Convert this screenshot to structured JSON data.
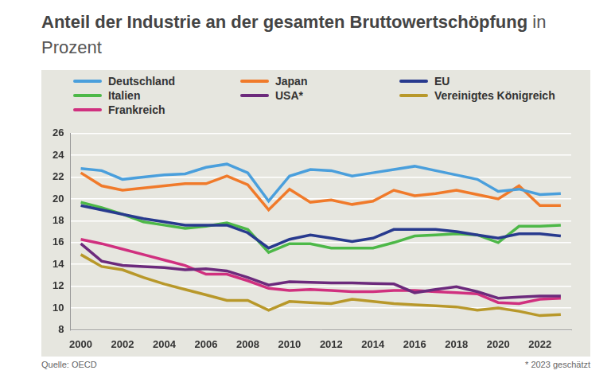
{
  "chart_data": {
    "type": "line",
    "title": "Anteil der Industrie an der gesamten Bruttowertschöpfung",
    "subtitle": "in Prozent",
    "source": "Quelle: OECD",
    "note": "* 2023 geschätzt",
    "x": [
      2000,
      2001,
      2002,
      2003,
      2004,
      2005,
      2006,
      2007,
      2008,
      2009,
      2010,
      2011,
      2012,
      2013,
      2014,
      2015,
      2016,
      2017,
      2018,
      2019,
      2020,
      2021,
      2022,
      2023
    ],
    "xlim": [
      1999.5,
      2023.5
    ],
    "xticks": [
      2000,
      2002,
      2004,
      2006,
      2008,
      2010,
      2012,
      2014,
      2016,
      2018,
      2020,
      2022
    ],
    "ylim": [
      8,
      26
    ],
    "yticks": [
      8,
      10,
      12,
      14,
      16,
      18,
      20,
      22,
      24,
      26
    ],
    "grid": true,
    "legend": "top",
    "series": [
      {
        "name": "Deutschland",
        "color": "#4a9fdc",
        "values": [
          22.8,
          22.6,
          21.8,
          22.0,
          22.2,
          22.3,
          22.9,
          23.2,
          22.4,
          19.8,
          22.1,
          22.7,
          22.6,
          22.1,
          22.4,
          22.7,
          23.0,
          22.6,
          22.2,
          21.8,
          20.7,
          20.9,
          20.4,
          20.5
        ]
      },
      {
        "name": "Japan",
        "color": "#f07a2a",
        "values": [
          22.4,
          21.2,
          20.8,
          21.0,
          21.2,
          21.4,
          21.4,
          22.1,
          21.3,
          19.0,
          20.9,
          19.7,
          19.9,
          19.5,
          19.8,
          20.8,
          20.3,
          20.5,
          20.8,
          20.4,
          20.0,
          21.2,
          19.4,
          19.4
        ]
      },
      {
        "name": "EU",
        "color": "#283a8e",
        "values": [
          19.4,
          19.0,
          18.6,
          18.2,
          17.9,
          17.6,
          17.6,
          17.6,
          16.9,
          15.5,
          16.3,
          16.7,
          16.4,
          16.1,
          16.4,
          17.2,
          17.2,
          17.2,
          17.0,
          16.7,
          16.4,
          16.8,
          16.8,
          16.6
        ]
      },
      {
        "name": "Italien",
        "color": "#4db848",
        "values": [
          19.7,
          19.2,
          18.6,
          17.9,
          17.6,
          17.3,
          17.5,
          17.8,
          17.2,
          15.1,
          15.9,
          15.9,
          15.5,
          15.5,
          15.5,
          16.0,
          16.6,
          16.7,
          16.8,
          16.7,
          16.0,
          17.5,
          17.5,
          17.6
        ]
      },
      {
        "name": "USA*",
        "color": "#6c2a7c",
        "values": [
          15.9,
          14.3,
          13.9,
          13.8,
          13.7,
          13.5,
          13.6,
          13.4,
          12.8,
          12.1,
          12.4,
          12.35,
          12.3,
          12.3,
          12.25,
          12.2,
          11.4,
          11.7,
          11.95,
          11.5,
          10.9,
          11.0,
          11.1,
          11.1
        ]
      },
      {
        "name": "Vereinigtes Königreich",
        "color": "#b8982a",
        "values": [
          14.9,
          13.8,
          13.5,
          12.8,
          12.2,
          11.7,
          11.2,
          10.7,
          10.7,
          9.8,
          10.6,
          10.5,
          10.4,
          10.8,
          10.6,
          10.4,
          10.3,
          10.2,
          10.1,
          9.8,
          10.0,
          9.7,
          9.3,
          9.4
        ]
      },
      {
        "name": "Frankreich",
        "color": "#d0307f",
        "values": [
          16.3,
          15.9,
          15.4,
          14.9,
          14.4,
          13.9,
          13.1,
          13.1,
          12.5,
          11.8,
          11.6,
          11.7,
          11.6,
          11.5,
          11.5,
          11.6,
          11.6,
          11.5,
          11.4,
          11.3,
          10.5,
          10.4,
          10.8,
          10.9
        ]
      }
    ]
  }
}
